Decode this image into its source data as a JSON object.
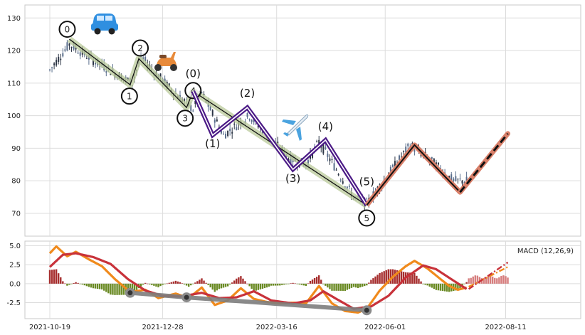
{
  "chart_data": [
    {
      "type": "candlestick",
      "panel": "price",
      "ylim": [
        63,
        134
      ],
      "yticks": [
        "70",
        "80",
        "90",
        "100",
        "110",
        "120",
        "130"
      ],
      "x_tick_labels": [
        "2021-10-19",
        "2021-12-28",
        "2022-03-16",
        "2022-06-01",
        "2022-08-11"
      ],
      "grid": true,
      "price_anchors": [
        {
          "day": 0,
          "value": 114
        },
        {
          "day": 9,
          "value": 122
        },
        {
          "day": 20,
          "value": 117
        },
        {
          "day": 38,
          "value": 110
        },
        {
          "day": 42,
          "value": 118
        },
        {
          "day": 56,
          "value": 108
        },
        {
          "day": 66,
          "value": 102
        },
        {
          "day": 70,
          "value": 107
        },
        {
          "day": 80,
          "value": 94
        },
        {
          "day": 92,
          "value": 100
        },
        {
          "day": 110,
          "value": 87
        },
        {
          "day": 118,
          "value": 85
        },
        {
          "day": 124,
          "value": 92
        },
        {
          "day": 140,
          "value": 75
        },
        {
          "day": 146,
          "value": 73
        },
        {
          "day": 166,
          "value": 91
        },
        {
          "day": 176,
          "value": 86
        },
        {
          "day": 186,
          "value": 80
        }
      ],
      "impulse_down": {
        "labels": [
          "0",
          "1",
          "2",
          "3",
          "4",
          "5"
        ],
        "points": [
          {
            "day": 9,
            "value": 123.5
          },
          {
            "day": 37,
            "value": 109.5
          },
          {
            "day": 41,
            "value": 117.5
          },
          {
            "day": 63,
            "value": 102.5
          },
          {
            "day": 66,
            "value": 107.5
          },
          {
            "day": 146,
            "value": 72.5
          }
        ]
      },
      "sub_wave": {
        "labels": [
          "(0)",
          "(1)",
          "(2)",
          "(3)",
          "(4)",
          "(5)"
        ],
        "points": [
          {
            "day": 66,
            "value": 107.5
          },
          {
            "day": 75,
            "value": 94
          },
          {
            "day": 91,
            "value": 102.5
          },
          {
            "day": 112,
            "value": 83.5
          },
          {
            "day": 127,
            "value": 92.5
          },
          {
            "day": 146,
            "value": 72.5
          }
        ]
      },
      "correction": {
        "points": [
          {
            "day": 146,
            "value": 72.5
          },
          {
            "day": 168,
            "value": 91
          },
          {
            "day": 189,
            "value": 76.5
          }
        ]
      },
      "projection": {
        "points": [
          {
            "day": 189,
            "value": 76.5
          },
          {
            "day": 211,
            "value": 94.5
          }
        ]
      },
      "icons": [
        "car",
        "scooter",
        "airplane"
      ]
    },
    {
      "type": "macd",
      "panel": "indicator",
      "title": "MACD (12,26,9)",
      "ylim": [
        -4.6,
        5.6
      ],
      "yticks": [
        "-2.5",
        "0.0",
        "2.5",
        "5.0"
      ],
      "macd_anchors": [
        {
          "day": 0,
          "value": 4.0
        },
        {
          "day": 3,
          "value": 4.9
        },
        {
          "day": 8,
          "value": 3.6
        },
        {
          "day": 12,
          "value": 4.2
        },
        {
          "day": 18,
          "value": 3.2
        },
        {
          "day": 24,
          "value": 2.3
        },
        {
          "day": 30,
          "value": 0.6
        },
        {
          "day": 37,
          "value": -1.1
        },
        {
          "day": 44,
          "value": -0.8
        },
        {
          "day": 50,
          "value": -1.9
        },
        {
          "day": 58,
          "value": -1.3
        },
        {
          "day": 64,
          "value": -1.9
        },
        {
          "day": 70,
          "value": -0.5
        },
        {
          "day": 76,
          "value": -2.8
        },
        {
          "day": 82,
          "value": -2.2
        },
        {
          "day": 88,
          "value": -0.6
        },
        {
          "day": 94,
          "value": -2.0
        },
        {
          "day": 100,
          "value": -2.4
        },
        {
          "day": 106,
          "value": -2.6
        },
        {
          "day": 112,
          "value": -2.5
        },
        {
          "day": 118,
          "value": -2.6
        },
        {
          "day": 124,
          "value": -0.3
        },
        {
          "day": 130,
          "value": -2.6
        },
        {
          "day": 136,
          "value": -3.6
        },
        {
          "day": 142,
          "value": -3.8
        },
        {
          "day": 146,
          "value": -3.3
        },
        {
          "day": 152,
          "value": -0.9
        },
        {
          "day": 158,
          "value": 0.9
        },
        {
          "day": 164,
          "value": 2.3
        },
        {
          "day": 168,
          "value": 3.0
        },
        {
          "day": 174,
          "value": 2.0
        },
        {
          "day": 180,
          "value": 0.6
        },
        {
          "day": 184,
          "value": -0.3
        },
        {
          "day": 188,
          "value": -0.8
        },
        {
          "day": 192,
          "value": -0.5
        }
      ],
      "signal_anchors": [
        {
          "day": 0,
          "value": 2.2
        },
        {
          "day": 6,
          "value": 3.8
        },
        {
          "day": 12,
          "value": 4.0
        },
        {
          "day": 20,
          "value": 3.5
        },
        {
          "day": 28,
          "value": 2.6
        },
        {
          "day": 36,
          "value": 0.6
        },
        {
          "day": 44,
          "value": -0.9
        },
        {
          "day": 52,
          "value": -1.6
        },
        {
          "day": 60,
          "value": -1.7
        },
        {
          "day": 70,
          "value": -1.2
        },
        {
          "day": 78,
          "value": -1.9
        },
        {
          "day": 86,
          "value": -1.8
        },
        {
          "day": 94,
          "value": -1.0
        },
        {
          "day": 102,
          "value": -2.2
        },
        {
          "day": 112,
          "value": -2.6
        },
        {
          "day": 120,
          "value": -2.2
        },
        {
          "day": 126,
          "value": -1.0
        },
        {
          "day": 132,
          "value": -2.0
        },
        {
          "day": 140,
          "value": -3.3
        },
        {
          "day": 148,
          "value": -3.0
        },
        {
          "day": 156,
          "value": -1.6
        },
        {
          "day": 164,
          "value": 0.8
        },
        {
          "day": 172,
          "value": 2.4
        },
        {
          "day": 178,
          "value": 1.9
        },
        {
          "day": 186,
          "value": 0.4
        },
        {
          "day": 192,
          "value": -0.7
        }
      ],
      "projection_macd": [
        {
          "day": 193,
          "value": -0.4
        },
        {
          "day": 211,
          "value": 2.2
        }
      ],
      "projection_signal": [
        {
          "day": 193,
          "value": -0.7
        },
        {
          "day": 211,
          "value": 2.8
        }
      ],
      "divergence_markers": [
        {
          "day": 37,
          "value": -1.2
        },
        {
          "day": 63,
          "value": -1.8
        },
        {
          "day": 146,
          "value": -3.5
        }
      ]
    }
  ]
}
